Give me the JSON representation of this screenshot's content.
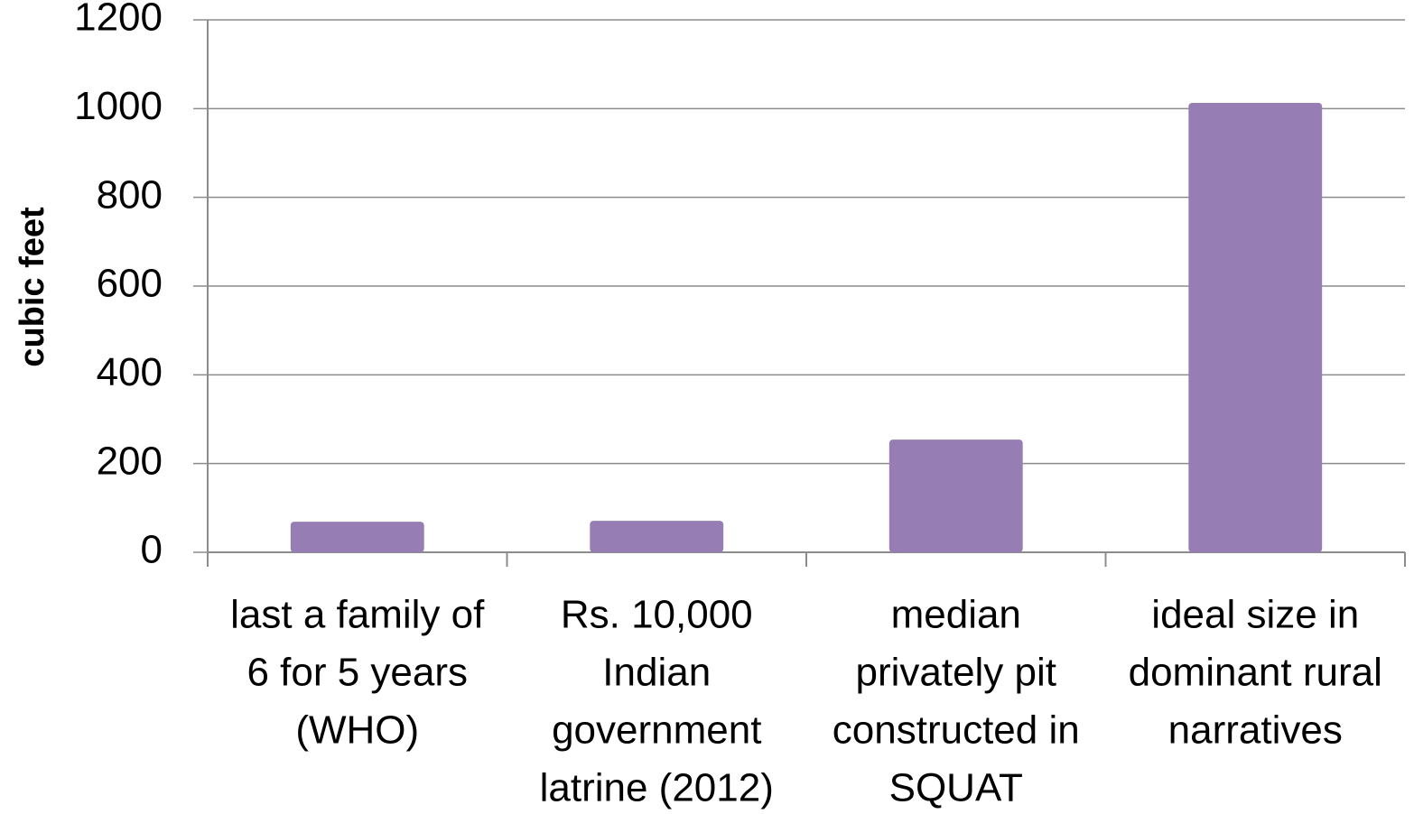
{
  "chart_data": {
    "type": "bar",
    "y_label": "cubic feet",
    "categories": [
      [
        "last a family of",
        "6 for 5 years",
        "(WHO)"
      ],
      [
        "Rs. 10,000",
        "Indian",
        "government",
        "latrine (2012)"
      ],
      [
        "median",
        "privately pit",
        "constructed in",
        "SQUAT"
      ],
      [
        "ideal size in",
        "dominant rural",
        "narratives"
      ]
    ],
    "values": [
      69,
      71,
      254,
      1013
    ],
    "color": "#967db4",
    "ylim": [
      0,
      1200
    ],
    "yticks": [
      0,
      200,
      400,
      600,
      800,
      1000,
      1200
    ],
    "grid": true
  }
}
